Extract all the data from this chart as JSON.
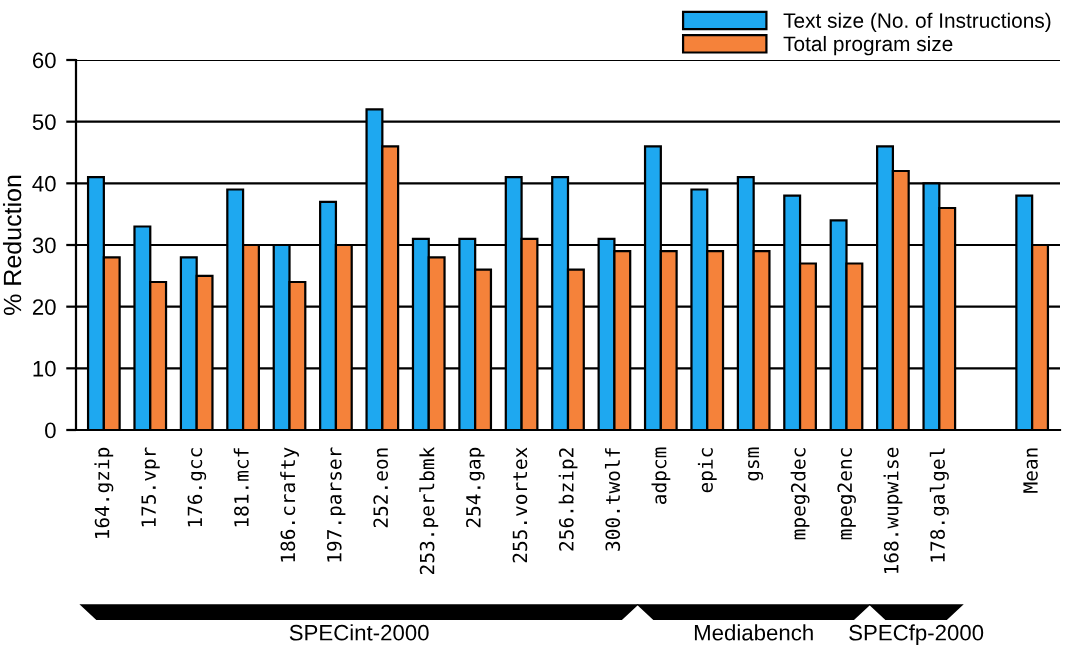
{
  "chart_data": {
    "type": "bar",
    "ylabel": "% Reduction",
    "categories": [
      "164.gzip",
      "175.vpr",
      "176.gcc",
      "181.mcf",
      "186.crafty",
      "197.parser",
      "252.eon",
      "253.perlbmk",
      "254.gap",
      "255.vortex",
      "256.bzip2",
      "300.twolf",
      "adpcm",
      "epic",
      "gsm",
      "mpeg2dec",
      "mpeg2enc",
      "168.wupwise",
      "178.galgel",
      null,
      "Mean"
    ],
    "series": [
      {
        "name": "Text size (No. of Instructions)",
        "color": "#1ea8f0",
        "values": [
          41,
          33,
          28,
          39,
          30,
          37,
          52,
          31,
          31,
          41,
          41,
          31,
          46,
          39,
          41,
          38,
          34,
          46,
          40,
          null,
          38
        ]
      },
      {
        "name": "Total program size",
        "color": "#f5823a",
        "values": [
          28,
          24,
          25,
          30,
          24,
          30,
          46,
          28,
          26,
          31,
          26,
          29,
          29,
          29,
          29,
          27,
          27,
          42,
          36,
          null,
          30
        ]
      }
    ],
    "ylim": [
      0,
      60
    ],
    "yticks": [
      0,
      10,
      20,
      30,
      40,
      50,
      60
    ],
    "grid": "y",
    "legend": "top right",
    "annotations": [
      "SPECint-2000",
      "Mediabench",
      "SPECfp-2000"
    ]
  }
}
